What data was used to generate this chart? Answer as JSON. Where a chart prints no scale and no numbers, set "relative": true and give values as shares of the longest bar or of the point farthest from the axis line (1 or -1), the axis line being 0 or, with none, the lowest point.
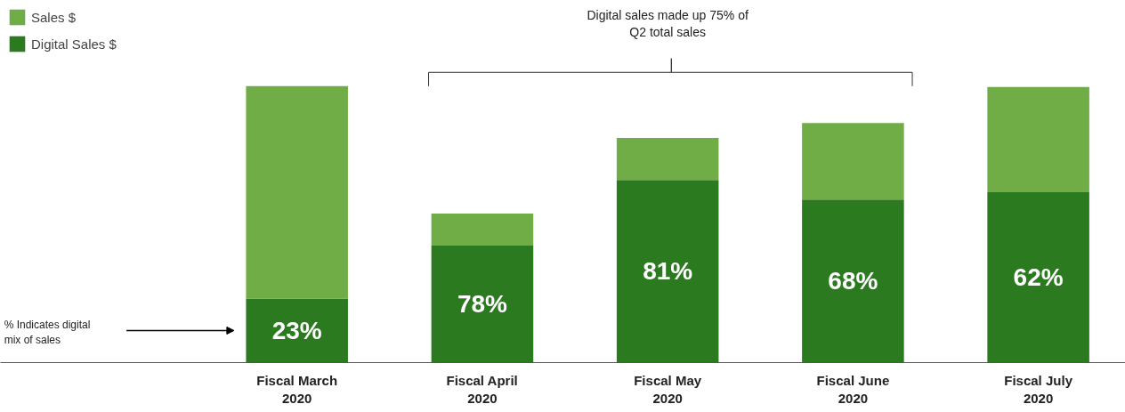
{
  "chart_data": {
    "type": "bar",
    "stacked": true,
    "relative": true,
    "categories": [
      "Fiscal March\n2020",
      "Fiscal April\n2020",
      "Fiscal May\n2020",
      "Fiscal June\n2020",
      "Fiscal July\n2020"
    ],
    "series": [
      {
        "name": "Digital Sales $",
        "color": "#2b7a1f",
        "values": [
          0.232,
          0.423,
          0.661,
          0.59,
          0.616
        ]
      },
      {
        "name": "Sales $",
        "color": "#70ad47",
        "values": [
          0.768,
          0.116,
          0.152,
          0.277,
          0.381
        ]
      }
    ],
    "legend": "top left",
    "grid": false,
    "annotations": [
      "Digital sales made up 75% of\nQ2 total sales",
      "% Indicates digital\nmix of sales",
      "23%",
      "78%",
      "81%",
      "68%",
      "62%"
    ]
  }
}
